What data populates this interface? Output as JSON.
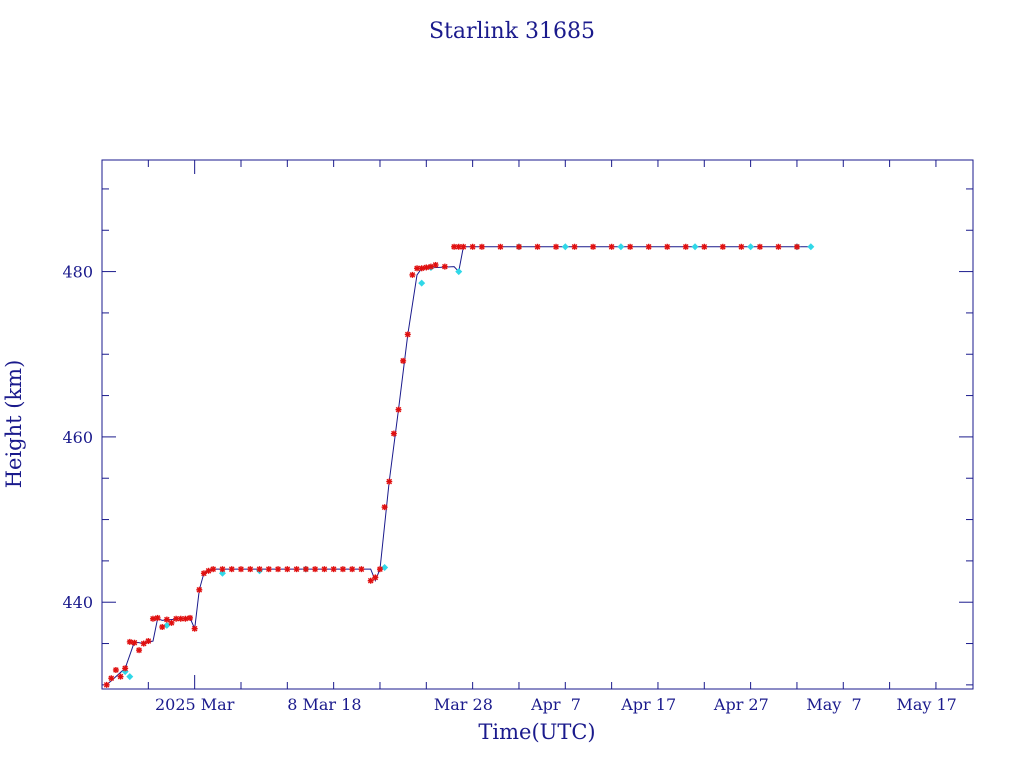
{
  "chart_data": {
    "type": "scatter",
    "title": "Starlink 31685",
    "xlabel": "Time(UTC)",
    "ylabel": "Height (km)",
    "x_ticks": [
      {
        "label": "2025 Mar",
        "date": "2025-02-27"
      },
      {
        "label": "8 Mar 18",
        "date": "2025-03-13"
      },
      {
        "label": "Mar 28",
        "date": "2025-03-28"
      },
      {
        "label": "Apr  7",
        "date": "2025-04-07"
      },
      {
        "label": "Apr 17",
        "date": "2025-04-17"
      },
      {
        "label": "Apr 27",
        "date": "2025-04-27"
      },
      {
        "label": "May  7",
        "date": "2025-05-07"
      },
      {
        "label": "May 17",
        "date": "2025-05-17"
      }
    ],
    "xlim": [
      "2025-02-17",
      "2025-05-22"
    ],
    "y_ticks": [
      440,
      460,
      480
    ],
    "ylim": [
      429.5,
      493.5
    ],
    "grid": false,
    "colors": {
      "axes": "#1a1a8c",
      "line": "#1a1a8c",
      "marker_primary": "#e01010",
      "marker_secondary": "#30d8e8"
    },
    "series": [
      {
        "marker": "star",
        "x": [
          "2025-02-17T12:00",
          "2025-02-18T00:00",
          "2025-02-18T12:00",
          "2025-02-19T00:00",
          "2025-02-19T12:00",
          "2025-02-20T00:00",
          "2025-02-20T12:00",
          "2025-02-21T00:00",
          "2025-02-21T12:00",
          "2025-02-22T00:00",
          "2025-02-22T12:00",
          "2025-02-23T00:00",
          "2025-02-23T12:00",
          "2025-02-24T00:00",
          "2025-02-24T12:00",
          "2025-02-25T00:00",
          "2025-02-25T12:00",
          "2025-02-26T00:00",
          "2025-02-26T12:00",
          "2025-02-27T00:00",
          "2025-02-27T12:00",
          "2025-02-28T00:00",
          "2025-02-28T12:00",
          "2025-03-01T00:00",
          "2025-03-02T00:00",
          "2025-03-03T00:00",
          "2025-03-04T00:00",
          "2025-03-05T00:00",
          "2025-03-06T00:00",
          "2025-03-07T00:00",
          "2025-03-08T00:00",
          "2025-03-09T00:00",
          "2025-03-10T00:00",
          "2025-03-11T00:00",
          "2025-03-12T00:00",
          "2025-03-13T00:00",
          "2025-03-14T00:00",
          "2025-03-15T00:00",
          "2025-03-16T00:00",
          "2025-03-17T00:00",
          "2025-03-18T00:00",
          "2025-03-18T12:00",
          "2025-03-19T00:00",
          "2025-03-19T12:00",
          "2025-03-20T00:00",
          "2025-03-20T12:00",
          "2025-03-21T00:00",
          "2025-03-21T12:00",
          "2025-03-22T00:00",
          "2025-03-22T12:00",
          "2025-03-23T00:00",
          "2025-03-23T12:00",
          "2025-03-24T00:00",
          "2025-03-24T12:00",
          "2025-03-25T00:00",
          "2025-03-26T00:00",
          "2025-03-27T00:00",
          "2025-03-27T12:00",
          "2025-03-28T00:00",
          "2025-03-29T00:00",
          "2025-03-30T00:00",
          "2025-04-01T00:00",
          "2025-04-03T00:00",
          "2025-04-05T00:00",
          "2025-04-07T00:00",
          "2025-04-09T00:00",
          "2025-04-11T00:00",
          "2025-04-13T00:00",
          "2025-04-15T00:00",
          "2025-04-17T00:00",
          "2025-04-19T00:00",
          "2025-04-21T00:00",
          "2025-04-23T00:00",
          "2025-04-25T00:00",
          "2025-04-27T00:00",
          "2025-04-29T00:00",
          "2025-05-01T00:00",
          "2025-05-03T00:00"
        ],
        "y": [
          430.0,
          430.8,
          431.8,
          431.0,
          432.0,
          435.2,
          435.1,
          434.2,
          435.0,
          435.3,
          438.0,
          438.1,
          437.0,
          437.9,
          437.5,
          438.0,
          438.0,
          438.0,
          438.1,
          436.8,
          441.5,
          443.5,
          443.8,
          444.0,
          444.0,
          444.0,
          444.0,
          444.0,
          444.0,
          444.0,
          444.0,
          444.0,
          444.0,
          444.0,
          444.0,
          444.0,
          444.0,
          444.0,
          444.0,
          444.0,
          442.6,
          443.0,
          444.0,
          451.5,
          454.6,
          460.4,
          463.3,
          469.2,
          472.4,
          479.6,
          480.4,
          480.4,
          480.5,
          480.6,
          480.8,
          480.6,
          483.0,
          483.0,
          483.0,
          483.0,
          483.0,
          483.0,
          483.0,
          483.0,
          483.0,
          483.0,
          483.0,
          483.0,
          483.0,
          483.0,
          483.0,
          483.0,
          483.0,
          483.0,
          483.0,
          483.0,
          483.0,
          483.0
        ]
      },
      {
        "marker": "diamond",
        "x": [
          "2025-02-19T12:00",
          "2025-02-20T00:00",
          "2025-02-24T00:00",
          "2025-03-02T00:00",
          "2025-03-06T00:00",
          "2025-03-11T00:00",
          "2025-03-19T12:00",
          "2025-03-23T12:00",
          "2025-03-24T12:00",
          "2025-03-27T12:00",
          "2025-04-03T00:00",
          "2025-04-08T00:00",
          "2025-04-14T00:00",
          "2025-04-22T00:00",
          "2025-04-28T00:00",
          "2025-05-03T00:00",
          "2025-05-04T12:00"
        ],
        "y": [
          431.6,
          431.0,
          437.2,
          443.5,
          443.8,
          444.0,
          444.2,
          478.6,
          480.5,
          480.0,
          483.0,
          483.0,
          483.0,
          483.0,
          483.0,
          483.0,
          483.0
        ]
      }
    ],
    "line": {
      "x": [
        "2025-02-17T12:00",
        "2025-02-19T12:00",
        "2025-02-20T12:00",
        "2025-02-21T12:00",
        "2025-02-22T12:00",
        "2025-02-23T00:00",
        "2025-02-23T12:00",
        "2025-02-26T12:00",
        "2025-02-27T00:00",
        "2025-02-27T12:00",
        "2025-02-28T00:00",
        "2025-03-01T00:00",
        "2025-03-18T00:00",
        "2025-03-18T12:00",
        "2025-03-19T00:00",
        "2025-03-20T00:00",
        "2025-03-21T00:00",
        "2025-03-22T00:00",
        "2025-03-23T00:00",
        "2025-03-23T12:00",
        "2025-03-27T00:00",
        "2025-03-27T12:00",
        "2025-03-28T00:00",
        "2025-05-04T12:00"
      ],
      "y": [
        430.0,
        432.0,
        435.2,
        435.0,
        435.3,
        438.0,
        437.8,
        438.1,
        436.8,
        441.5,
        443.5,
        444.0,
        444.0,
        442.6,
        444.0,
        454.6,
        463.3,
        472.4,
        479.6,
        480.4,
        480.6,
        480.0,
        483.0,
        483.0
      ]
    }
  }
}
